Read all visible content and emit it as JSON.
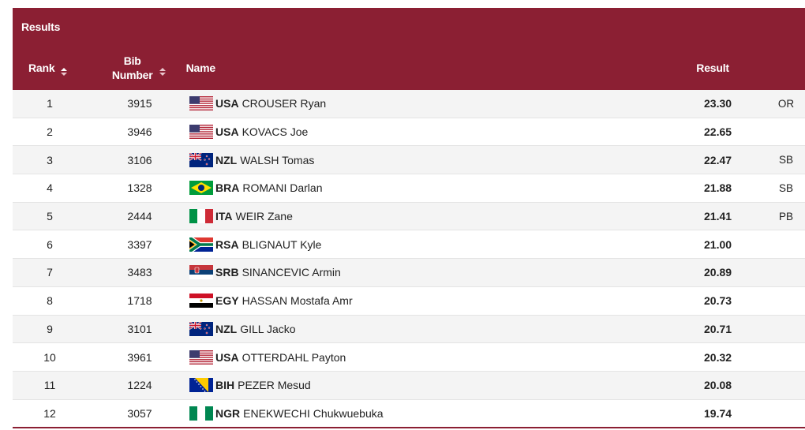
{
  "table": {
    "title": "Results",
    "headers": {
      "rank": "Rank",
      "bib_line1": "Bib",
      "bib_line2": "Number",
      "name": "Name",
      "result": "Result"
    },
    "colors": {
      "header_bg": "#8b1f33",
      "row_alt": "#f4f4f4"
    },
    "rows": [
      {
        "rank": "1",
        "bib": "3915",
        "noc": "USA",
        "name": "CROUSER Ryan",
        "result": "23.30",
        "mark": "OR",
        "flag": "usa-flag-icon"
      },
      {
        "rank": "2",
        "bib": "3946",
        "noc": "USA",
        "name": "KOVACS Joe",
        "result": "22.65",
        "mark": "",
        "flag": "usa-flag-icon"
      },
      {
        "rank": "3",
        "bib": "3106",
        "noc": "NZL",
        "name": "WALSH Tomas",
        "result": "22.47",
        "mark": "SB",
        "flag": "nzl-flag-icon"
      },
      {
        "rank": "4",
        "bib": "1328",
        "noc": "BRA",
        "name": "ROMANI Darlan",
        "result": "21.88",
        "mark": "SB",
        "flag": "bra-flag-icon"
      },
      {
        "rank": "5",
        "bib": "2444",
        "noc": "ITA",
        "name": "WEIR Zane",
        "result": "21.41",
        "mark": "PB",
        "flag": "ita-flag-icon"
      },
      {
        "rank": "6",
        "bib": "3397",
        "noc": "RSA",
        "name": "BLIGNAUT Kyle",
        "result": "21.00",
        "mark": "",
        "flag": "rsa-flag-icon"
      },
      {
        "rank": "7",
        "bib": "3483",
        "noc": "SRB",
        "name": "SINANCEVIC Armin",
        "result": "20.89",
        "mark": "",
        "flag": "srb-flag-icon"
      },
      {
        "rank": "8",
        "bib": "1718",
        "noc": "EGY",
        "name": "HASSAN Mostafa Amr",
        "result": "20.73",
        "mark": "",
        "flag": "egy-flag-icon"
      },
      {
        "rank": "9",
        "bib": "3101",
        "noc": "NZL",
        "name": "GILL Jacko",
        "result": "20.71",
        "mark": "",
        "flag": "nzl-flag-icon"
      },
      {
        "rank": "10",
        "bib": "3961",
        "noc": "USA",
        "name": "OTTERDAHL Payton",
        "result": "20.32",
        "mark": "",
        "flag": "usa-flag-icon"
      },
      {
        "rank": "11",
        "bib": "1224",
        "noc": "BIH",
        "name": "PEZER Mesud",
        "result": "20.08",
        "mark": "",
        "flag": "bih-flag-icon"
      },
      {
        "rank": "12",
        "bib": "3057",
        "noc": "NGR",
        "name": "ENEKWECHI Chukwuebuka",
        "result": "19.74",
        "mark": "",
        "flag": "ngr-flag-icon"
      }
    ]
  }
}
